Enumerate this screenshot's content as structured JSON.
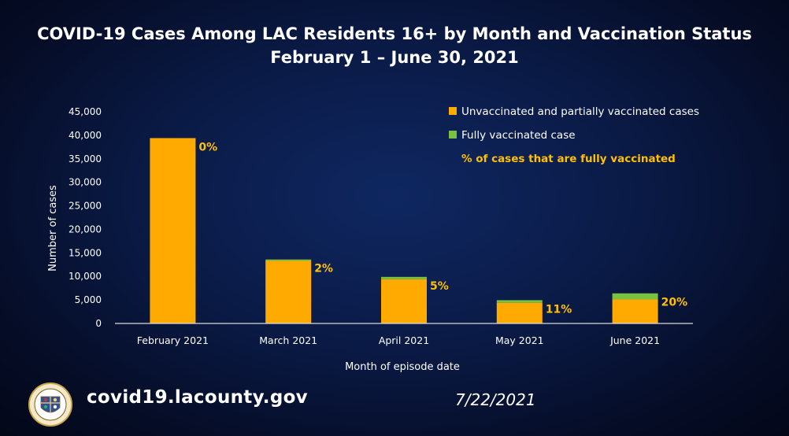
{
  "header": {
    "title_line1": "COVID-19 Cases Among LAC Residents 16+ by Month and Vaccination Status",
    "title_line2": "February 1 – June 30, 2021"
  },
  "footer": {
    "url": "covid19.lacounty.gov",
    "date": "7/22/2021"
  },
  "colors": {
    "unvaccinated": "#ffaa00",
    "vaccinated": "#7ac142",
    "percent_label": "#ffc000",
    "axis": "#d9d9d9",
    "text": "#ffffff"
  },
  "chart_data": {
    "type": "bar",
    "stacked": true,
    "categories": [
      "February 2021",
      "March 2021",
      "April 2021",
      "May 2021",
      "June 2021"
    ],
    "series": [
      {
        "name": "Unvaccinated and partially vaccinated cases",
        "values": [
          39400,
          13300,
          9400,
          4400,
          5100
        ]
      },
      {
        "name": "Fully vaccinated case",
        "values": [
          0,
          300,
          500,
          550,
          1300
        ]
      }
    ],
    "percent_label_name": "% of cases that are fully vaccinated",
    "percent_labels": [
      "0%",
      "2%",
      "5%",
      "11%",
      "20%"
    ],
    "xlabel": "Month of episode date",
    "ylabel": "Number of cases",
    "ylim": [
      0,
      45000
    ],
    "yticks": [
      0,
      5000,
      10000,
      15000,
      20000,
      25000,
      30000,
      35000,
      40000,
      45000
    ],
    "ytick_labels": [
      "0",
      "5,000",
      "10,000",
      "15,000",
      "20,000",
      "25,000",
      "30,000",
      "35,000",
      "40,000",
      "45,000"
    ],
    "grid": false,
    "legend": "top-right"
  }
}
